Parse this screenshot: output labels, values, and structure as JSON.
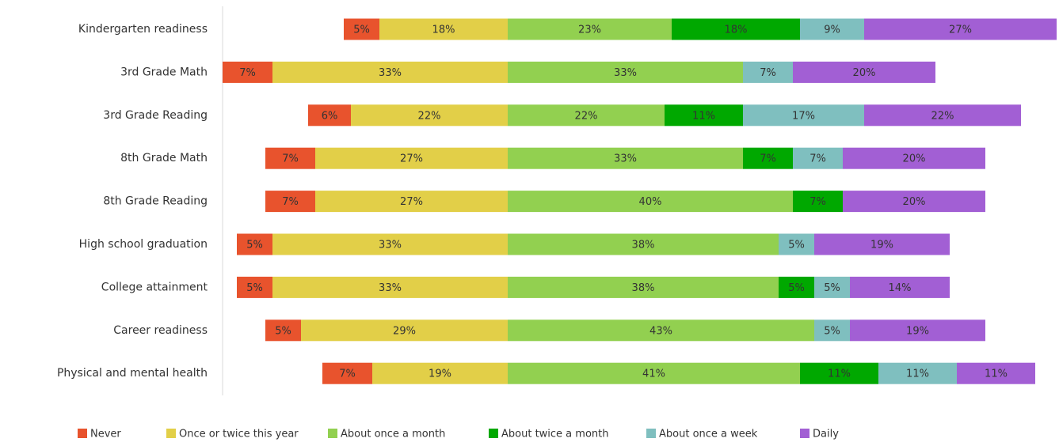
{
  "chart_data": {
    "type": "bar",
    "orientation": "horizontal",
    "stacked": true,
    "categories": [
      "Kindergarten readiness",
      "3rd Grade Math",
      "3rd Grade Reading",
      "8th Grade Math",
      "8th Grade Reading",
      "High school graduation",
      "College attainment",
      "Career readiness",
      "Physical and mental health"
    ],
    "series": [
      {
        "name": "Never",
        "color": "#e8532d",
        "values": [
          5,
          7,
          6,
          7,
          7,
          5,
          5,
          5,
          7
        ],
        "value_labels": [
          "5%",
          "7%",
          "6%",
          "7%",
          "7%",
          "5%",
          "5%",
          "5%",
          "7%"
        ]
      },
      {
        "name": "Once or twice this year",
        "color": "#e2cf48",
        "values": [
          18,
          33,
          22,
          27,
          27,
          33,
          33,
          29,
          19
        ],
        "value_labels": [
          "18%",
          "33%",
          "22%",
          "27%",
          "27%",
          "33%",
          "33%",
          "29%",
          "19%"
        ]
      },
      {
        "name": "About once a month",
        "color": "#92d050",
        "values": [
          23,
          33,
          22,
          33,
          40,
          38,
          38,
          43,
          41
        ],
        "value_labels": [
          "23%",
          "33%",
          "22%",
          "33%",
          "40%",
          "38%",
          "38%",
          "43%",
          "41%"
        ]
      },
      {
        "name": "About twice a month",
        "color": "#00a800",
        "values": [
          18,
          null,
          11,
          7,
          7,
          null,
          5,
          null,
          11
        ],
        "value_labels": [
          "18%",
          null,
          "11%",
          "7%",
          "7%",
          null,
          "5%",
          null,
          "11%"
        ]
      },
      {
        "name": "About once a week",
        "color": "#7fbfbf",
        "values": [
          9,
          7,
          17,
          7,
          null,
          5,
          5,
          5,
          11
        ],
        "value_labels": [
          "9%",
          "7%",
          "17%",
          "7%",
          null,
          "5%",
          "5%",
          "5%",
          "11%"
        ]
      },
      {
        "name": "Daily",
        "color": "#a25fd4",
        "values": [
          27,
          20,
          22,
          20,
          20,
          19,
          14,
          19,
          11
        ],
        "value_labels": [
          "27%",
          "20%",
          "22%",
          "20%",
          "20%",
          "19%",
          "14%",
          "19%",
          "11%"
        ]
      }
    ]
  }
}
